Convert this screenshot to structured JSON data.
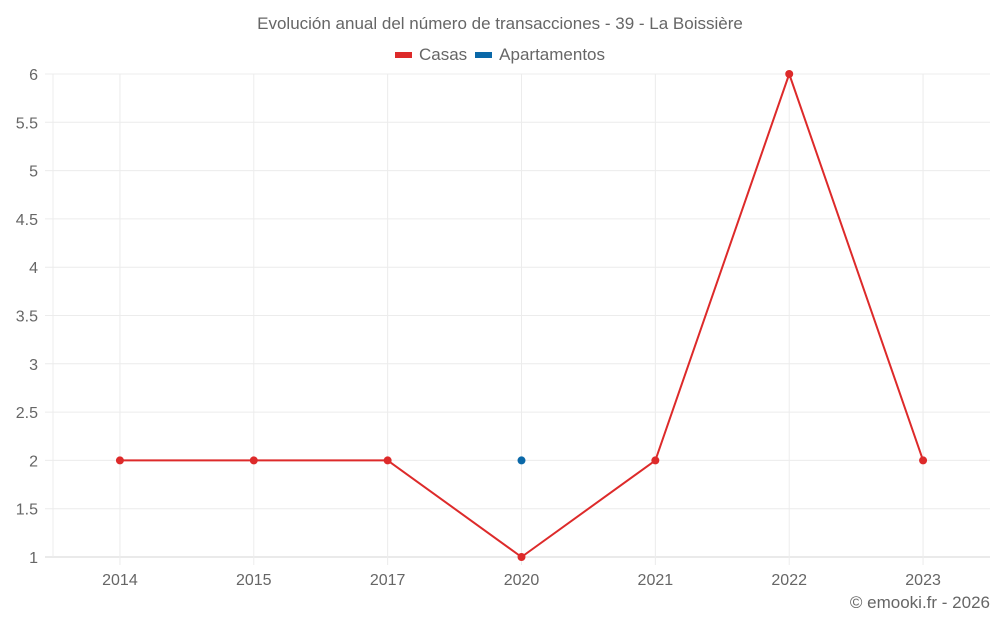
{
  "header": {
    "title": "Evolución anual del número de transacciones - 39 - La Boissière"
  },
  "legend": {
    "items": [
      {
        "label": "Casas",
        "color": "#dd2a2a"
      },
      {
        "label": "Apartamentos",
        "color": "#0a68a8"
      }
    ]
  },
  "footer": {
    "credit": "© emooki.fr - 2026"
  },
  "colors": {
    "grid": "#ececec",
    "axis": "#d6d6d6",
    "text": "#666666"
  },
  "chart_data": {
    "type": "line",
    "title": "Evolución anual del número de transacciones - 39 - La Boissière",
    "xlabel": "",
    "ylabel": "",
    "categories": [
      "2014",
      "2015",
      "2017",
      "2020",
      "2021",
      "2022",
      "2023"
    ],
    "series": [
      {
        "name": "Casas",
        "color": "#dd2a2a",
        "values": [
          2,
          2,
          2,
          1,
          2,
          6,
          2
        ]
      },
      {
        "name": "Apartamentos",
        "color": "#0a68a8",
        "values": [
          null,
          null,
          null,
          2,
          null,
          null,
          null
        ]
      }
    ],
    "ylim": [
      1,
      6
    ],
    "yticks": [
      "1",
      "1.5",
      "2",
      "2.5",
      "3",
      "3.5",
      "4",
      "4.5",
      "5",
      "5.5",
      "6"
    ],
    "grid": true,
    "legend_position": "top"
  }
}
